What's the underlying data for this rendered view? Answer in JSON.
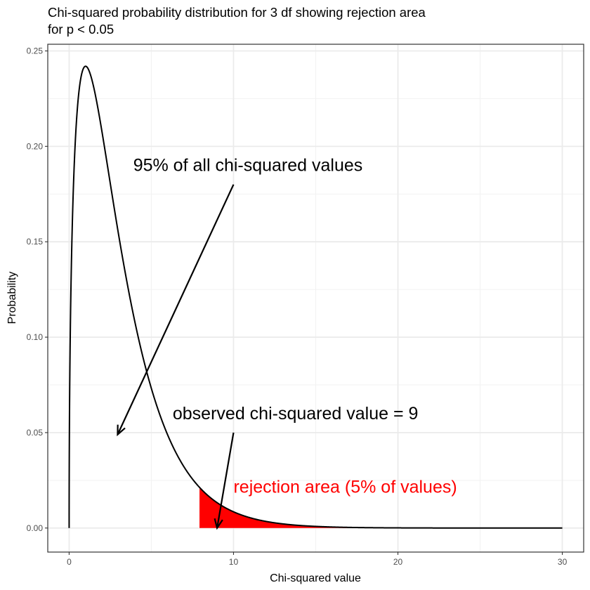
{
  "chart_data": {
    "type": "line",
    "title_line1": "Chi-squared probability distribution for 3 df showing rejection area",
    "title_line2": "for p < 0.05",
    "xlabel": "Chi-squared value",
    "ylabel": "Probability",
    "df": 3,
    "xlim": [
      -1.3,
      31.3
    ],
    "ylim": [
      -0.0126,
      0.2535
    ],
    "x_range": [
      0,
      30
    ],
    "x_ticks": [
      0,
      10,
      20,
      30
    ],
    "x_tick_labels": [
      "0",
      "10",
      "20",
      "30"
    ],
    "y_ticks": [
      0.0,
      0.05,
      0.1,
      0.15,
      0.2,
      0.25
    ],
    "y_tick_labels": [
      "0.00",
      "0.05",
      "0.10",
      "0.15",
      "0.20",
      "0.25"
    ],
    "rejection_start": 7.93,
    "grid": true,
    "colors": {
      "curve": "#000000",
      "rejection_fill": "#ff0000",
      "grid_major": "#ebebeb",
      "grid_minor": "#f2f2f2",
      "panel_border": "#333333"
    },
    "annotations": [
      {
        "id": "anno-95",
        "text": "95% of all chi-squared values",
        "color": "#000000",
        "x": 3.9,
        "y": 0.187,
        "arrow_from": [
          10,
          0.18
        ],
        "arrow_to": [
          2.95,
          0.049
        ]
      },
      {
        "id": "anno-observed",
        "text": "observed chi-squared value = 9",
        "color": "#000000",
        "x": 6.3,
        "y": 0.057,
        "arrow_from": [
          10,
          0.05
        ],
        "arrow_to": [
          9,
          0.0
        ]
      },
      {
        "id": "anno-rejection",
        "text": "rejection area (5% of values)",
        "color": "#ff0000",
        "x": 10.0,
        "y": 0.0185,
        "arrow_from": null,
        "arrow_to": null
      }
    ]
  }
}
